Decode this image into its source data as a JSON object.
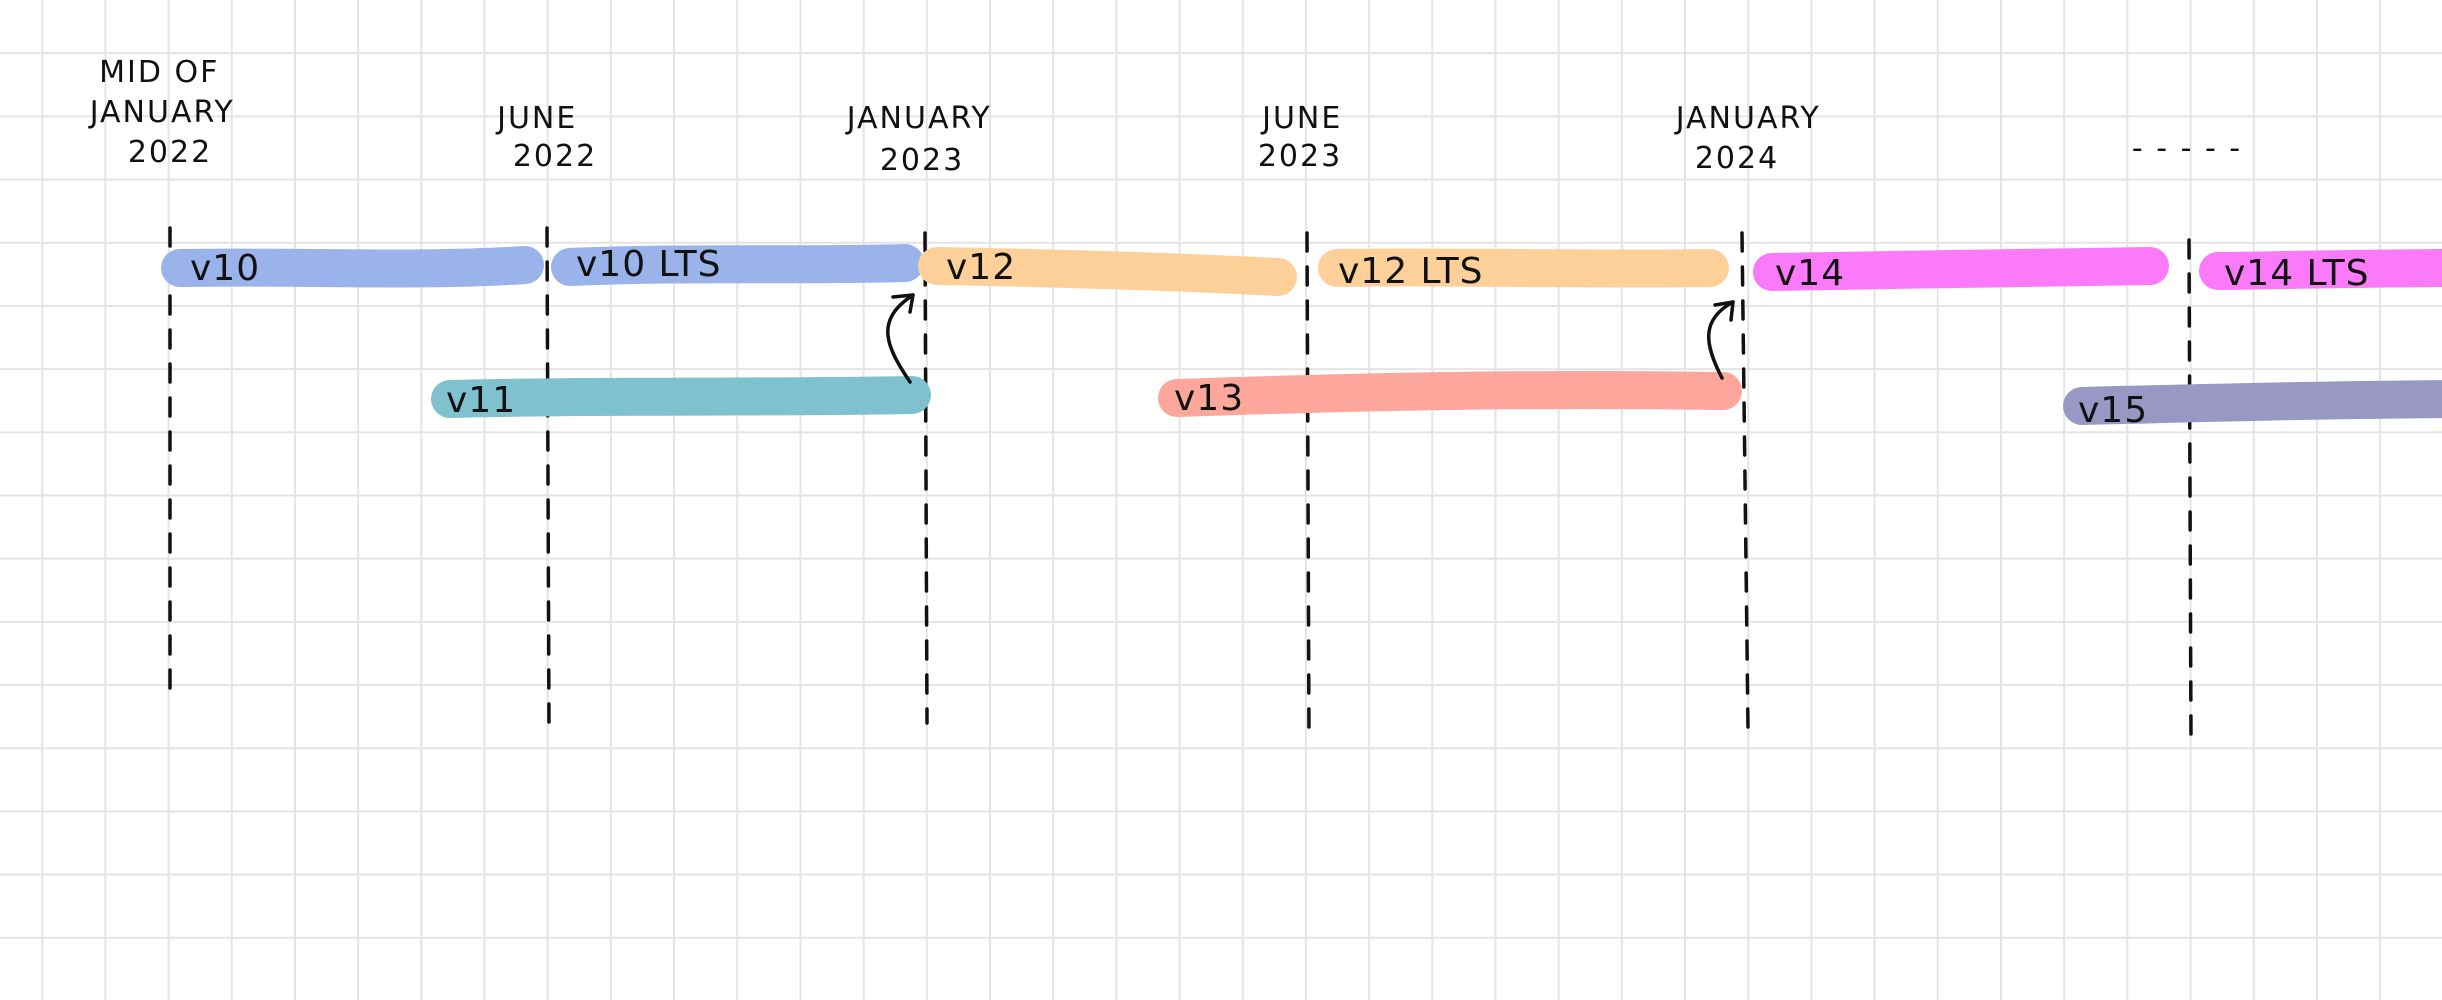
{
  "date_labels": [
    {
      "lines": [
        "MID OF",
        "JANUARY",
        "2022"
      ]
    },
    {
      "lines": [
        "JUNE",
        "2022"
      ]
    },
    {
      "lines": [
        "JANUARY",
        "2023"
      ]
    },
    {
      "lines": [
        "JUNE",
        "2023"
      ]
    },
    {
      "lines": [
        "JANUARY",
        "2024"
      ]
    }
  ],
  "ellipsis": "- - - - -",
  "versions": [
    {
      "label": "v10",
      "color": "#9ab3ea"
    },
    {
      "label": "v10 LTS",
      "color": "#9ab3ea"
    },
    {
      "label": "v11",
      "color": "#7fc1cf"
    },
    {
      "label": "v12",
      "color": "#fdd09a"
    },
    {
      "label": "v12  LTS",
      "color": "#fdd09a"
    },
    {
      "label": "v13",
      "color": "#fca69c"
    },
    {
      "label": "v14",
      "color": "#fb7af9"
    },
    {
      "label": "v14  LTS",
      "color": "#fb7af9"
    },
    {
      "label": "v15",
      "color": "#9998c4"
    }
  ]
}
